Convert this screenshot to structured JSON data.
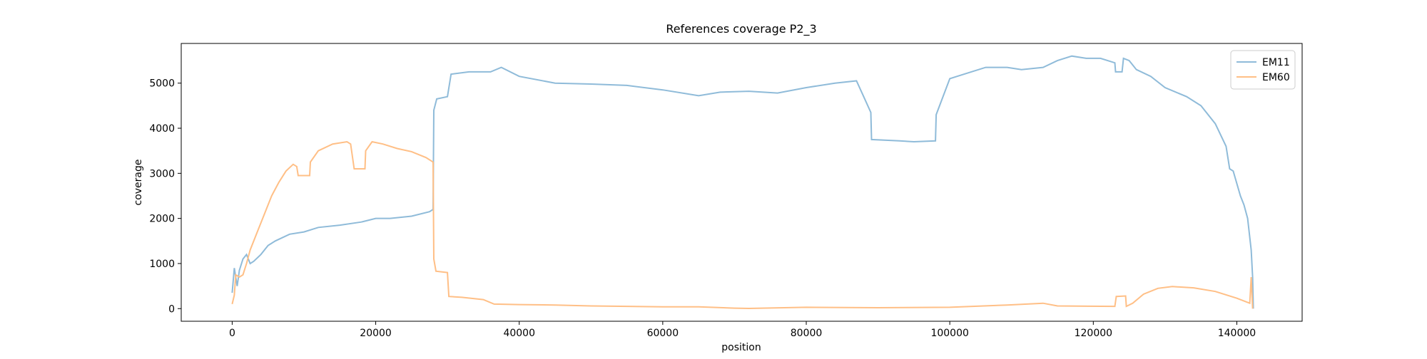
{
  "chart_data": {
    "type": "line",
    "title": "References coverage P2_3",
    "x_label": "position",
    "y_label": "coverage",
    "xlim": [
      -7100,
      149100
    ],
    "ylim": [
      -280,
      5880
    ],
    "xticks": [
      0,
      20000,
      40000,
      60000,
      80000,
      100000,
      120000,
      140000
    ],
    "yticks": [
      0,
      1000,
      2000,
      3000,
      4000,
      5000
    ],
    "legend": "upper right",
    "series": [
      {
        "name": "EM11",
        "color": "#8fbbd9",
        "x": [
          0,
          300,
          700,
          1000,
          1500,
          2000,
          2500,
          3000,
          4000,
          5000,
          6000,
          8000,
          10000,
          12000,
          15000,
          18000,
          20000,
          22000,
          25000,
          27500,
          28000,
          28100,
          28500,
          30000,
          30500,
          33000,
          36000,
          37500,
          40000,
          45000,
          50000,
          55000,
          60000,
          65000,
          68000,
          72000,
          76000,
          80000,
          84000,
          87000,
          88000,
          89000,
          89100,
          93000,
          95000,
          98000,
          98100,
          100000,
          102000,
          105000,
          108000,
          110000,
          113000,
          115000,
          117000,
          119000,
          121000,
          123000,
          123100,
          124000,
          124200,
          125000,
          126000,
          128000,
          130000,
          133000,
          135000,
          137000,
          138500,
          139000,
          139500,
          140500,
          141000,
          141500,
          142000,
          142200,
          142300
        ],
        "values": [
          350,
          900,
          500,
          850,
          1100,
          1200,
          1000,
          1050,
          1200,
          1400,
          1500,
          1650,
          1700,
          1800,
          1850,
          1920,
          2000,
          2000,
          2050,
          2150,
          2200,
          4400,
          4650,
          4700,
          5200,
          5250,
          5250,
          5350,
          5150,
          5000,
          4980,
          4950,
          4850,
          4720,
          4800,
          4820,
          4780,
          4900,
          5000,
          5050,
          4700,
          4350,
          3750,
          3720,
          3700,
          3720,
          4300,
          5100,
          5200,
          5350,
          5350,
          5300,
          5350,
          5500,
          5600,
          5550,
          5550,
          5450,
          5250,
          5250,
          5550,
          5500,
          5300,
          5150,
          4900,
          4700,
          4500,
          4100,
          3600,
          3100,
          3050,
          2500,
          2300,
          2000,
          1300,
          700,
          0
        ]
      },
      {
        "name": "EM60",
        "color": "#ffbf86",
        "x": [
          0,
          300,
          500,
          1000,
          1500,
          2000,
          2500,
          3500,
          4500,
          5500,
          6500,
          7500,
          8500,
          9000,
          9200,
          10800,
          10900,
          12000,
          14000,
          16000,
          16500,
          17000,
          18500,
          18600,
          19500,
          21000,
          23000,
          25000,
          27000,
          28000,
          28100,
          28400,
          30000,
          30200,
          32000,
          35000,
          36500,
          40000,
          45000,
          50000,
          60000,
          65000,
          70000,
          72000,
          80000,
          90000,
          100000,
          108000,
          113000,
          115000,
          123000,
          123200,
          124500,
          124600,
          125500,
          127000,
          129000,
          131000,
          134000,
          137000,
          140000,
          141800,
          142000,
          142200
        ],
        "values": [
          100,
          300,
          750,
          700,
          750,
          1000,
          1300,
          1700,
          2100,
          2500,
          2800,
          3050,
          3200,
          3150,
          2950,
          2950,
          3250,
          3500,
          3650,
          3700,
          3650,
          3100,
          3100,
          3500,
          3700,
          3650,
          3550,
          3480,
          3350,
          3250,
          1100,
          830,
          800,
          270,
          250,
          200,
          100,
          90,
          80,
          60,
          40,
          40,
          10,
          5,
          30,
          20,
          30,
          80,
          120,
          60,
          50,
          270,
          280,
          50,
          120,
          320,
          450,
          490,
          460,
          380,
          230,
          120,
          700,
          0
        ]
      }
    ]
  }
}
